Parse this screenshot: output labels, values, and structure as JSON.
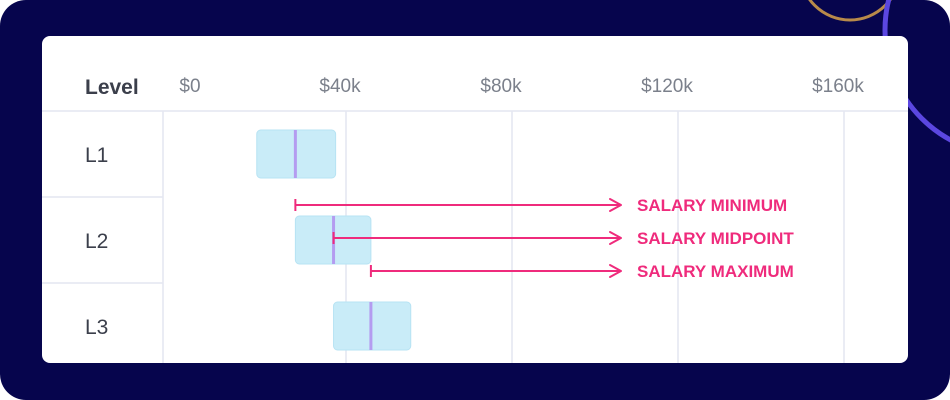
{
  "chart_data": {
    "type": "range-bar",
    "header_label": "Level",
    "x_ticks": [
      "$0",
      "$40k",
      "$80k",
      "$120k",
      "$160k"
    ],
    "x_tick_values": [
      0,
      40000,
      80000,
      120000,
      160000
    ],
    "levels": [
      {
        "label": "L1",
        "min": 18500,
        "mid": 27800,
        "max": 37500
      },
      {
        "label": "L2",
        "min": 27800,
        "mid": 37000,
        "max": 46000
      },
      {
        "label": "L3",
        "min": 37000,
        "mid": 46000,
        "max": 55600
      }
    ],
    "annotations": [
      {
        "label": "SALARY MINIMUM",
        "points_to": "min"
      },
      {
        "label": "SALARY MIDPOINT",
        "points_to": "mid"
      },
      {
        "label": "SALARY MAXIMUM",
        "points_to": "max"
      }
    ],
    "annotated_level": "L2"
  },
  "colors": {
    "frame_bg": "#06054d",
    "card_bg": "#ffffff",
    "grid": "#e4e6f1",
    "range_fill": "#c9ecf8",
    "range_stroke": "#b7e3f3",
    "midpoint": "#b49cf0",
    "annotation": "#ef2b7c",
    "deco_gold": "#b88a4a",
    "deco_blue": "#5b47e0"
  }
}
